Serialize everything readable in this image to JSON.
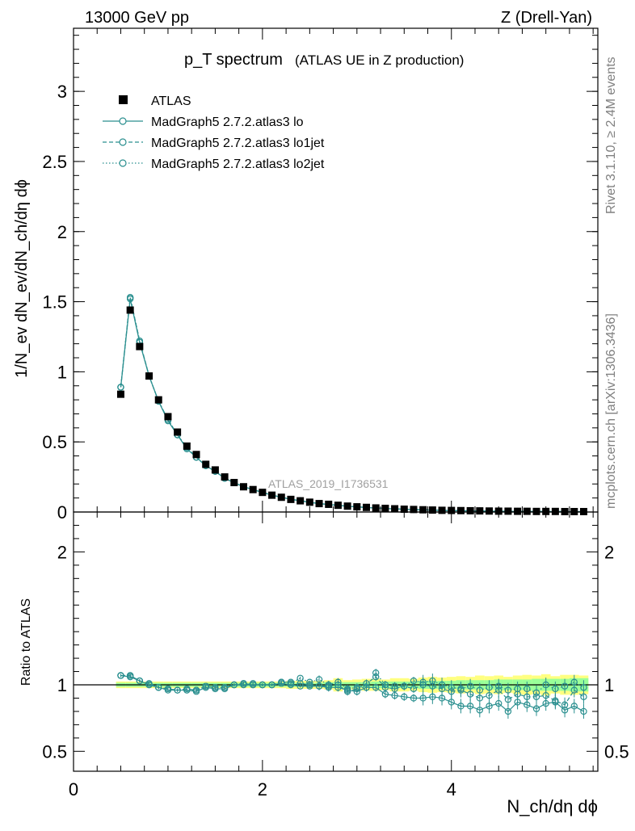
{
  "header": {
    "left": "13000 GeV pp",
    "right": "Z (Drell-Yan)"
  },
  "side_text": {
    "rivet": "Rivet 3.1.10, ≥ 2.4M events",
    "mcplots": "mcplots.cern.ch [arXiv:1306.3436]"
  },
  "watermark": "ATLAS_2019_I1736531",
  "colors": {
    "mc": "#2a8f8f",
    "data": "#000000",
    "band_inner": "#99ff99",
    "band_outer": "#ffff80"
  },
  "chart_data": [
    {
      "type": "scatter",
      "title": "p_T spectrum",
      "subtitle": "(ATLAS UE in Z production)",
      "ylabel": "1/N_ev dN_ev/dN_ch/dη dϕ",
      "xlim": [
        0,
        5.55
      ],
      "ylim": [
        0,
        3.45
      ],
      "yticks": [
        "0",
        "0.5",
        "1",
        "1.5",
        "2",
        "2.5",
        "3"
      ],
      "legend_position": "top-left",
      "legend": [
        "ATLAS",
        "MadGraph5 2.7.2.atlas3 lo",
        "MadGraph5 2.7.2.atlas3 lo1jet",
        "MadGraph5 2.7.2.atlas3 lo2jet"
      ],
      "x": [
        0.5,
        0.6,
        0.7,
        0.8,
        0.9,
        1.0,
        1.1,
        1.2,
        1.3,
        1.4,
        1.5,
        1.6,
        1.7,
        1.8,
        1.9,
        2.0,
        2.1,
        2.2,
        2.3,
        2.4,
        2.5,
        2.6,
        2.7,
        2.8,
        2.9,
        3.0,
        3.1,
        3.2,
        3.3,
        3.4,
        3.5,
        3.6,
        3.7,
        3.8,
        3.9,
        4.0,
        4.1,
        4.2,
        4.3,
        4.4,
        4.5,
        4.6,
        4.7,
        4.8,
        4.9,
        5.0,
        5.1,
        5.2,
        5.3,
        5.4
      ],
      "series": [
        {
          "name": "ATLAS",
          "values": [
            0.84,
            1.44,
            1.18,
            0.97,
            0.8,
            0.68,
            0.57,
            0.47,
            0.41,
            0.34,
            0.3,
            0.25,
            0.21,
            0.18,
            0.16,
            0.14,
            0.12,
            0.105,
            0.09,
            0.08,
            0.07,
            0.06,
            0.055,
            0.048,
            0.042,
            0.037,
            0.033,
            0.029,
            0.026,
            0.023,
            0.02,
            0.018,
            0.016,
            0.014,
            0.012,
            0.011,
            0.01,
            0.009,
            0.008,
            0.007,
            0.006,
            0.006,
            0.005,
            0.005,
            0.004,
            0.004,
            0.004,
            0.003,
            0.003,
            0.003
          ]
        },
        {
          "name": "MadGraph5 2.7.2.atlas3 lo",
          "values": [
            0.89,
            1.52,
            1.21,
            0.97,
            0.79,
            0.65,
            0.55,
            0.45,
            0.39,
            0.33,
            0.29,
            0.24,
            0.21,
            0.18,
            0.16,
            0.14,
            0.12,
            0.105,
            0.09,
            0.08,
            0.069,
            0.059,
            0.054,
            0.047,
            0.041,
            0.036,
            0.032,
            0.028,
            0.025,
            0.022,
            0.019,
            0.017,
            0.015,
            0.013,
            0.011,
            0.01,
            0.009,
            0.008,
            0.007,
            0.006,
            0.005,
            0.005,
            0.004,
            0.004,
            0.004,
            0.003,
            0.003,
            0.003,
            0.002,
            0.002
          ]
        },
        {
          "name": "MadGraph5 2.7.2.atlas3 lo1jet",
          "values": [
            0.89,
            1.53,
            1.22,
            0.97,
            0.79,
            0.66,
            0.55,
            0.46,
            0.39,
            0.33,
            0.29,
            0.24,
            0.21,
            0.18,
            0.16,
            0.14,
            0.12,
            0.106,
            0.091,
            0.081,
            0.07,
            0.06,
            0.054,
            0.047,
            0.042,
            0.037,
            0.033,
            0.029,
            0.026,
            0.023,
            0.02,
            0.018,
            0.016,
            0.014,
            0.012,
            0.011,
            0.009,
            0.008,
            0.008,
            0.007,
            0.006,
            0.005,
            0.005,
            0.005,
            0.004,
            0.004,
            0.004,
            0.003,
            0.003,
            0.003
          ]
        },
        {
          "name": "MadGraph5 2.7.2.atlas3 lo2jet",
          "values": [
            0.89,
            1.53,
            1.22,
            0.97,
            0.79,
            0.66,
            0.55,
            0.46,
            0.39,
            0.33,
            0.29,
            0.24,
            0.21,
            0.18,
            0.16,
            0.14,
            0.12,
            0.106,
            0.091,
            0.081,
            0.07,
            0.06,
            0.055,
            0.047,
            0.042,
            0.037,
            0.033,
            0.029,
            0.026,
            0.023,
            0.02,
            0.018,
            0.016,
            0.014,
            0.012,
            0.011,
            0.01,
            0.009,
            0.008,
            0.007,
            0.006,
            0.006,
            0.005,
            0.005,
            0.004,
            0.004,
            0.004,
            0.003,
            0.003,
            0.003
          ]
        }
      ]
    },
    {
      "type": "scatter",
      "ylabel": "Ratio to ATLAS",
      "xlabel": "N_ch/dη dϕ",
      "xlim": [
        0,
        5.55
      ],
      "ylim": [
        0.35,
        2.3
      ],
      "yticks": [
        "0.5",
        "1",
        "2"
      ],
      "xticks": [
        "0",
        "2",
        "4"
      ],
      "x": [
        0.5,
        0.6,
        0.7,
        0.8,
        0.9,
        1.0,
        1.1,
        1.2,
        1.3,
        1.4,
        1.5,
        1.6,
        1.7,
        1.8,
        1.9,
        2.0,
        2.1,
        2.2,
        2.3,
        2.4,
        2.5,
        2.6,
        2.7,
        2.8,
        2.9,
        3.0,
        3.1,
        3.2,
        3.3,
        3.4,
        3.5,
        3.6,
        3.7,
        3.8,
        3.9,
        4.0,
        4.1,
        4.2,
        4.3,
        4.4,
        4.5,
        4.6,
        4.7,
        4.8,
        4.9,
        5.0,
        5.1,
        5.2,
        5.3,
        5.4
      ],
      "band_inner_halfwidth": [
        0.015,
        0.015,
        0.015,
        0.015,
        0.015,
        0.015,
        0.015,
        0.015,
        0.015,
        0.015,
        0.015,
        0.015,
        0.015,
        0.015,
        0.015,
        0.015,
        0.015,
        0.015,
        0.015,
        0.015,
        0.015,
        0.015,
        0.02,
        0.02,
        0.02,
        0.02,
        0.02,
        0.025,
        0.025,
        0.025,
        0.025,
        0.025,
        0.03,
        0.03,
        0.03,
        0.03,
        0.035,
        0.035,
        0.035,
        0.035,
        0.04,
        0.04,
        0.04,
        0.04,
        0.045,
        0.045,
        0.045,
        0.045,
        0.05,
        0.05
      ],
      "band_outer_halfwidth": [
        0.025,
        0.025,
        0.025,
        0.025,
        0.025,
        0.025,
        0.025,
        0.025,
        0.025,
        0.025,
        0.025,
        0.025,
        0.025,
        0.025,
        0.025,
        0.025,
        0.025,
        0.025,
        0.03,
        0.03,
        0.03,
        0.03,
        0.035,
        0.05,
        0.035,
        0.04,
        0.045,
        0.045,
        0.04,
        0.05,
        0.05,
        0.045,
        0.055,
        0.06,
        0.055,
        0.06,
        0.065,
        0.06,
        0.07,
        0.065,
        0.07,
        0.06,
        0.07,
        0.075,
        0.07,
        0.08,
        0.065,
        0.075,
        0.075,
        0.07
      ],
      "series": [
        {
          "name": "MadGraph5 2.7.2.atlas3 lo",
          "values": [
            1.07,
            1.06,
            1.03,
            1.0,
            0.98,
            0.96,
            0.96,
            0.96,
            0.95,
            0.98,
            0.97,
            0.97,
            1.0,
            1.0,
            1.0,
            1.0,
            1.0,
            1.01,
            1.0,
            0.99,
            0.99,
            0.99,
            0.98,
            0.98,
            0.96,
            0.95,
            0.98,
            0.98,
            0.93,
            0.92,
            0.91,
            0.9,
            0.9,
            0.91,
            0.9,
            0.87,
            0.84,
            0.84,
            0.81,
            0.84,
            0.86,
            0.8,
            0.87,
            0.85,
            0.82,
            0.86,
            0.87,
            0.81,
            0.84,
            0.8
          ]
        },
        {
          "name": "MadGraph5 2.7.2.atlas3 lo1jet",
          "values": [
            1.07,
            1.07,
            1.03,
            1.01,
            0.98,
            0.97,
            0.96,
            0.97,
            0.96,
            0.99,
            0.98,
            0.98,
            1.0,
            1.01,
            1.0,
            1.0,
            1.0,
            1.02,
            1.02,
            1.01,
            1.0,
            0.99,
            0.99,
            1.0,
            0.95,
            0.97,
            1.01,
            1.06,
            0.98,
            0.97,
            0.99,
            0.97,
            1.0,
            0.99,
            0.97,
            0.95,
            0.96,
            0.93,
            0.9,
            0.92,
            0.96,
            0.89,
            0.93,
            0.91,
            0.91,
            0.92,
            0.88,
            0.85,
            0.96,
            0.91
          ]
        },
        {
          "name": "MadGraph5 2.7.2.atlas3 lo2jet",
          "values": [
            1.07,
            1.07,
            1.03,
            1.0,
            0.98,
            0.97,
            0.96,
            0.96,
            0.96,
            0.99,
            0.98,
            0.98,
            1.0,
            1.01,
            1.01,
            1.0,
            1.0,
            1.02,
            1.01,
            1.05,
            1.02,
            1.04,
            1.0,
            1.02,
            0.97,
            0.98,
            0.98,
            1.09,
            1.0,
            0.99,
            0.99,
            1.03,
            1.02,
            1.03,
            1.0,
            0.98,
            0.97,
            0.99,
            0.96,
            0.98,
            0.99,
            0.96,
            0.97,
            0.97,
            0.94,
            1.0,
            0.97,
            0.99,
            1.02,
            0.98
          ]
        }
      ]
    }
  ]
}
